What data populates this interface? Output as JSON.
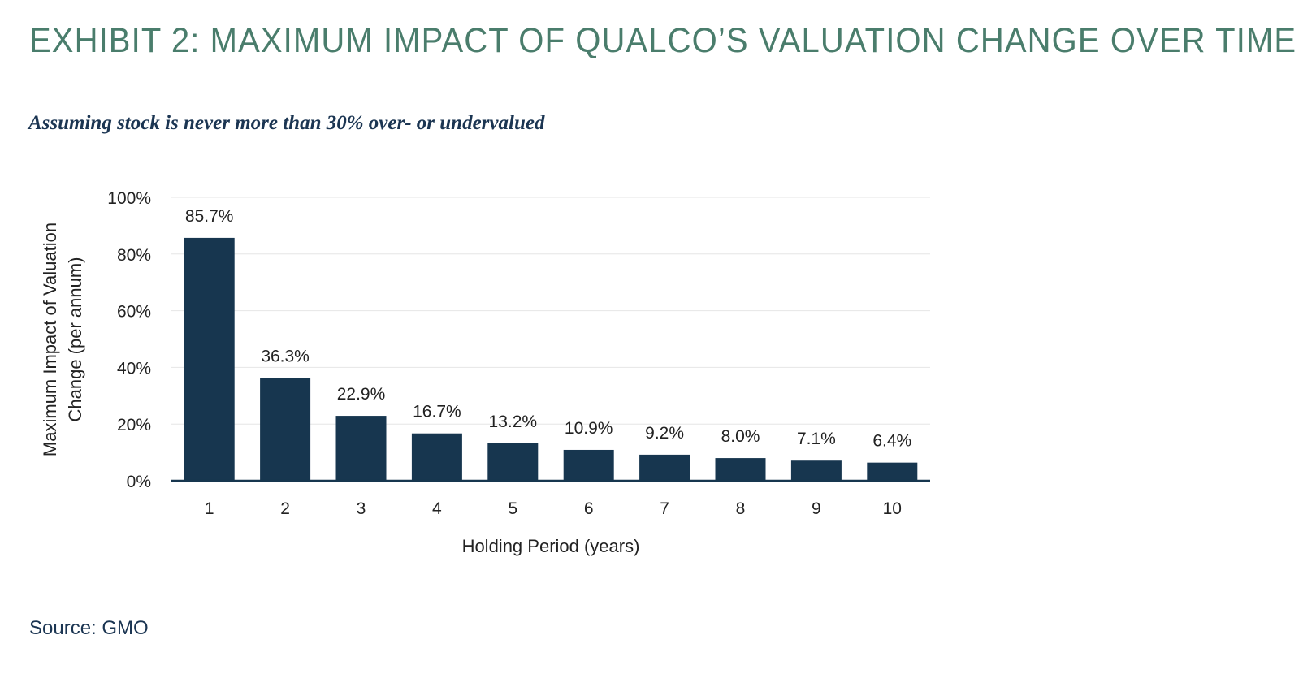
{
  "header": {
    "title": "EXHIBIT 2: MAXIMUM IMPACT OF QUALCO’S VALUATION CHANGE OVER TIME",
    "subtitle": "Assuming stock is never more than 30% over- or undervalued"
  },
  "footer": {
    "source": "Source: GMO"
  },
  "colors": {
    "title": "#4a7d6c",
    "subtitle": "#1b3552",
    "bar": "#17364f",
    "grid": "#e6e6e6",
    "axis": "#17364f"
  },
  "chart_data": {
    "type": "bar",
    "categories": [
      "1",
      "2",
      "3",
      "4",
      "5",
      "6",
      "7",
      "8",
      "9",
      "10"
    ],
    "values": [
      85.7,
      36.3,
      22.9,
      16.7,
      13.2,
      10.9,
      9.2,
      8.0,
      7.1,
      6.4
    ],
    "value_labels": [
      "85.7%",
      "36.3%",
      "22.9%",
      "16.7%",
      "13.2%",
      "10.9%",
      "9.2%",
      "8.0%",
      "7.1%",
      "6.4%"
    ],
    "xlabel": "Holding Period (years)",
    "ylabel_lines": [
      "Maximum Impact of Valuation",
      "Change (per annum)"
    ],
    "ylim": [
      0,
      100
    ],
    "yticks": [
      0,
      20,
      40,
      60,
      80,
      100
    ],
    "ytick_labels": [
      "0%",
      "20%",
      "40%",
      "60%",
      "80%",
      "100%"
    ],
    "grid": true,
    "legend": "none"
  }
}
